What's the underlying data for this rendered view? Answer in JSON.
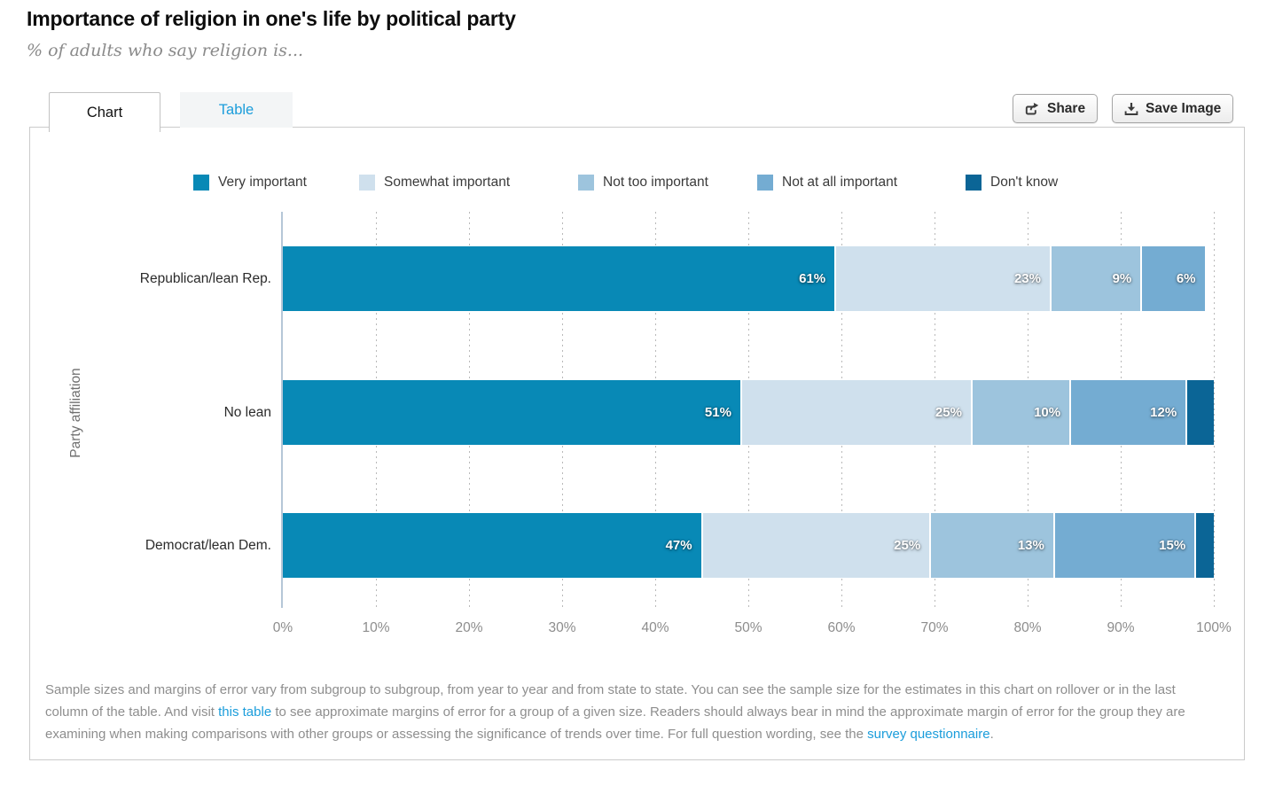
{
  "page": {
    "title": "Importance of religion in one's life by political party",
    "subtitle": "% of adults who say religion is..."
  },
  "tabs": [
    {
      "label": "Chart",
      "active": true
    },
    {
      "label": "Table",
      "active": false
    }
  ],
  "toolbar": {
    "share_label": "Share",
    "save_label": "Save Image",
    "share_icon": "share-export-icon",
    "save_icon": "download-icon"
  },
  "chart_data": {
    "type": "bar",
    "orientation": "horizontal-stacked",
    "ylabel": "Party affiliation",
    "xlim": [
      0,
      100
    ],
    "x_ticks": [
      "0%",
      "10%",
      "20%",
      "30%",
      "40%",
      "50%",
      "60%",
      "70%",
      "80%",
      "90%",
      "100%"
    ],
    "grid": "dotted-vertical",
    "legend_position": "top",
    "categories": [
      "Republican/lean Rep.",
      "No lean",
      "Democrat/lean Dem."
    ],
    "series": [
      {
        "name": "Very important",
        "color": "#0889b6",
        "values": [
          61,
          51,
          47
        ]
      },
      {
        "name": "Somewhat important",
        "color": "#cfe0ed",
        "values": [
          23,
          25,
          25
        ]
      },
      {
        "name": "Not too important",
        "color": "#9dc4dd",
        "values": [
          9,
          10,
          13
        ]
      },
      {
        "name": "Not at all important",
        "color": "#74acd2",
        "values": [
          6,
          12,
          15
        ]
      },
      {
        "name": "Don't know",
        "color": "#0b6596",
        "values": [
          0,
          2,
          1
        ]
      }
    ],
    "value_label_suffix": "%",
    "label_min_value": 5
  },
  "footnote": {
    "p1": "Sample sizes and margins of error vary from subgroup to subgroup, from year to year and from state to state. You can see the sample size for the estimates in this chart on rollover or in the last column of the table. And visit ",
    "link1": "this table",
    "p2": " to see approximate margins of error for a group of a given size. Readers should always bear in mind the approximate margin of error for the group they are examining when making comparisons with other groups or assessing the significance of trends over time. For full question wording, see the ",
    "link2": "survey questionnaire",
    "p3": "."
  },
  "colors": {
    "accent_link": "#1b9ddb",
    "axis_line": "#b5c7d7",
    "gridline": "#b9b9b9",
    "panel_border": "#cbcbcb"
  }
}
